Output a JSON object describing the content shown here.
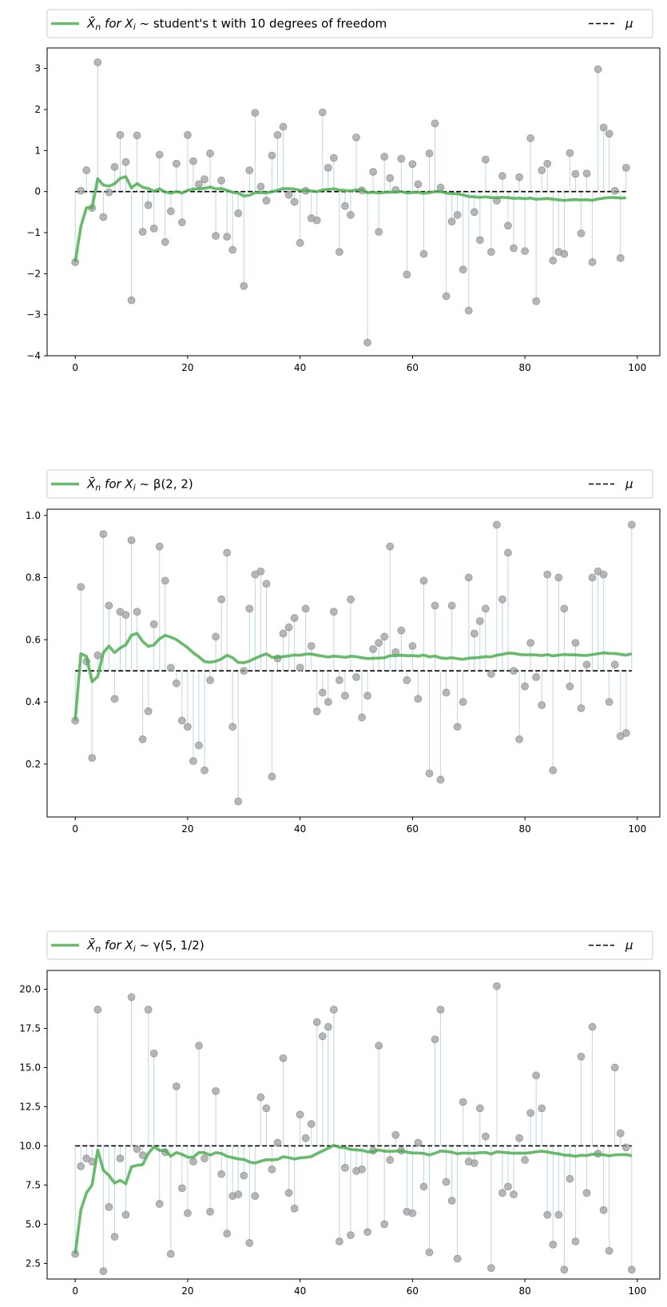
{
  "colors": {
    "running_mean": "#4CAF50",
    "mu_line": "#000000",
    "samples": "#999999",
    "stems": "#a6c8e0",
    "axis": "#000000",
    "legend_border": "#cccccc"
  },
  "chart_data": [
    {
      "type": "scatter",
      "legend": {
        "placement": "top, above plot",
        "mean_label_prefix": "X̄",
        "mean_label_sub": "n",
        "mean_label_mid": " for X",
        "mean_label_sub2": "i",
        "mean_label_dist": " ~ student's t with 10 degrees of freedom",
        "mu_label": "μ"
      },
      "xlim": [
        -5,
        104
      ],
      "ylim": [
        -4,
        3.5
      ],
      "xticks": [
        0,
        20,
        40,
        60,
        80,
        100
      ],
      "xtick_labels": [
        "0",
        "20",
        "40",
        "60",
        "80",
        "100"
      ],
      "yticks": [
        -4,
        -3,
        -2,
        -1,
        0,
        1,
        2,
        3
      ],
      "ytick_labels": [
        "−4",
        "−3",
        "−2",
        "−1",
        "0",
        "1",
        "2",
        "3"
      ],
      "mu": 0,
      "samples": [
        -1.72,
        0.02,
        0.52,
        -0.4,
        3.15,
        -0.62,
        -0.02,
        0.6,
        1.38,
        0.72,
        -2.65,
        1.37,
        -0.98,
        -0.33,
        -0.9,
        0.9,
        -1.23,
        -0.48,
        0.68,
        -0.75,
        1.38,
        0.74,
        0.18,
        0.3,
        0.93,
        -1.08,
        0.27,
        -1.1,
        -1.42,
        -0.53,
        -2.3,
        0.52,
        1.92,
        0.12,
        -0.22,
        0.88,
        1.38,
        1.58,
        -0.08,
        -0.25,
        -1.25,
        0.02,
        -0.65,
        -0.7,
        1.93,
        0.58,
        0.82,
        -1.47,
        -0.35,
        -0.57,
        1.32,
        0.03,
        -3.68,
        0.48,
        -0.98,
        0.85,
        0.33,
        0.04,
        0.8,
        -2.02,
        0.67,
        0.18,
        -1.52,
        0.93,
        1.66,
        0.1,
        -2.55,
        -0.73,
        -0.57,
        -1.9,
        -2.9,
        -0.5,
        -1.18,
        0.78,
        -1.47,
        -0.22,
        0.38,
        -0.83,
        -1.38,
        0.35,
        -1.45,
        1.3,
        -2.67,
        0.52,
        0.68,
        -1.68,
        -1.47,
        -1.52,
        0.94,
        0.43,
        -1.02,
        0.44,
        -1.72,
        2.98,
        1.56,
        1.41,
        0.02,
        -1.62,
        0.58
      ]
    },
    {
      "type": "scatter",
      "legend": {
        "placement": "top, above plot",
        "mean_label_prefix": "X̄",
        "mean_label_sub": "n",
        "mean_label_mid": " for X",
        "mean_label_sub2": "i",
        "mean_label_dist": " ~ β(2, 2)",
        "mu_label": "μ"
      },
      "xlim": [
        -5,
        104
      ],
      "ylim": [
        0.03,
        1.02
      ],
      "xticks": [
        0,
        20,
        40,
        60,
        80,
        100
      ],
      "xtick_labels": [
        "0",
        "20",
        "40",
        "60",
        "80",
        "100"
      ],
      "yticks": [
        0.2,
        0.4,
        0.6,
        0.8,
        1.0
      ],
      "ytick_labels": [
        "0.2",
        "0.4",
        "0.6",
        "0.8",
        "1.0"
      ],
      "mu": 0.5,
      "samples": [
        0.34,
        0.77,
        0.53,
        0.22,
        0.55,
        0.94,
        0.71,
        0.41,
        0.69,
        0.68,
        0.92,
        0.69,
        0.28,
        0.37,
        0.65,
        0.9,
        0.79,
        0.51,
        0.46,
        0.34,
        0.32,
        0.21,
        0.26,
        0.18,
        0.47,
        0.61,
        0.73,
        0.88,
        0.32,
        0.08,
        0.5,
        0.7,
        0.81,
        0.82,
        0.78,
        0.16,
        0.54,
        0.62,
        0.64,
        0.67,
        0.51,
        0.7,
        0.58,
        0.37,
        0.43,
        0.4,
        0.69,
        0.47,
        0.42,
        0.73,
        0.48,
        0.35,
        0.42,
        0.57,
        0.59,
        0.61,
        0.9,
        0.56,
        0.63,
        0.47,
        0.58,
        0.41,
        0.79,
        0.17,
        0.71,
        0.15,
        0.43,
        0.71,
        0.32,
        0.4,
        0.8,
        0.62,
        0.66,
        0.7,
        0.49,
        0.97,
        0.73,
        0.88,
        0.5,
        0.28,
        0.45,
        0.59,
        0.48,
        0.39,
        0.81,
        0.18,
        0.8,
        0.7,
        0.45,
        0.59,
        0.38,
        0.52,
        0.8,
        0.82,
        0.81,
        0.4,
        0.52,
        0.29,
        0.3,
        0.97
      ]
    },
    {
      "type": "scatter",
      "legend": {
        "placement": "top, above plot",
        "mean_label_prefix": "X̄",
        "mean_label_sub": "n",
        "mean_label_mid": " for X",
        "mean_label_sub2": "i",
        "mean_label_dist": " ~ γ(5, 1/2)",
        "mu_label": "μ"
      },
      "xlim": [
        -5,
        104
      ],
      "ylim": [
        1.5,
        21.2
      ],
      "xticks": [
        0,
        20,
        40,
        60,
        80,
        100
      ],
      "xtick_labels": [
        "0",
        "20",
        "40",
        "60",
        "80",
        "100"
      ],
      "yticks": [
        2.5,
        5.0,
        7.5,
        10.0,
        12.5,
        15.0,
        17.5,
        20.0
      ],
      "ytick_labels": [
        "2.5",
        "5.0",
        "7.5",
        "10.0",
        "12.5",
        "15.0",
        "17.5",
        "20.0"
      ],
      "mu": 10,
      "samples": [
        3.1,
        8.7,
        9.2,
        9.0,
        18.7,
        2.0,
        6.1,
        4.2,
        9.2,
        5.6,
        19.5,
        9.8,
        9.4,
        18.7,
        15.9,
        6.3,
        9.6,
        3.1,
        13.8,
        7.3,
        5.7,
        9.0,
        16.4,
        9.2,
        5.8,
        13.5,
        8.2,
        4.4,
        6.8,
        6.9,
        8.1,
        3.8,
        6.8,
        13.1,
        12.4,
        8.5,
        10.2,
        15.6,
        7.0,
        6.0,
        12.0,
        10.5,
        11.4,
        17.9,
        17.0,
        17.6,
        18.7,
        3.9,
        8.6,
        4.3,
        8.4,
        8.5,
        4.5,
        9.7,
        16.4,
        5.0,
        9.1,
        10.7,
        9.7,
        5.8,
        5.7,
        10.2,
        7.4,
        3.2,
        16.8,
        18.7,
        7.7,
        6.5,
        2.8,
        12.8,
        9.0,
        8.9,
        12.4,
        10.6,
        2.2,
        20.2,
        7.0,
        7.4,
        6.9,
        10.5,
        9.1,
        12.1,
        14.5,
        12.4,
        5.6,
        3.7,
        5.6,
        2.1,
        7.9,
        3.9,
        15.7,
        7.0,
        17.6,
        9.5,
        5.9,
        3.3,
        15.0,
        10.8,
        9.9,
        2.1
      ]
    }
  ]
}
